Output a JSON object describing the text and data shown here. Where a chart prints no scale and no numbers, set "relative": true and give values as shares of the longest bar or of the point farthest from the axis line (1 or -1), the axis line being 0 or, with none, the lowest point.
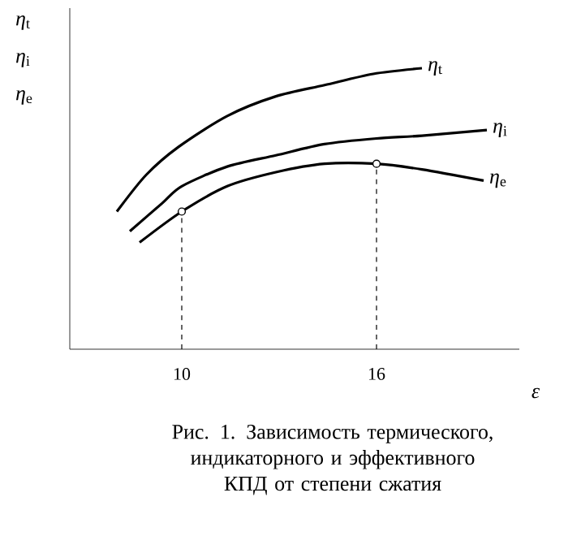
{
  "chart_data": {
    "type": "line",
    "relative": true,
    "xlabel": "ε",
    "title": "Рис.    1. Зависимость термического, индикаторного и эффективного КПД от степени сжатия",
    "xlim": [
      6.55,
      20.4
    ],
    "xticks": [
      10,
      16
    ],
    "grid": false,
    "annotations": [
      "*η*$_{t}$",
      "*η*$_{i}$",
      "*η*$_{e}$"
    ],
    "series": [
      {
        "name": "*η*$_{t}$",
        "color": "#000000",
        "x": [
          8.0,
          8.9,
          9.9,
          11.4,
          12.9,
          14.4,
          15.9,
          17.4
        ],
        "values": [
          0.49,
          0.62,
          0.72,
          0.83,
          0.9,
          0.94,
          0.98,
          1.0
        ]
      },
      {
        "name": "*η*$_{i}$",
        "color": "#000000",
        "x": [
          8.4,
          9.4,
          10,
          11.4,
          12.9,
          14.4,
          16,
          17.4,
          19.4
        ],
        "values": [
          0.42,
          0.52,
          0.58,
          0.65,
          0.69,
          0.73,
          0.75,
          0.76,
          0.78
        ]
      },
      {
        "name": "*η*$_{e}$",
        "color": "#000000",
        "x": [
          8.7,
          10,
          11.4,
          12.9,
          14.4,
          16,
          17.4,
          19.3
        ],
        "values": [
          0.38,
          0.49,
          0.58,
          0.63,
          0.66,
          0.66,
          0.64,
          0.6
        ]
      },
      {
        "type": "scatter",
        "marker": "circle",
        "color": "#000000",
        "x": [
          10,
          16
        ],
        "values": [
          0.49,
          0.66
        ]
      }
    ],
    "ref_lines": [
      {
        "axis": "x",
        "value": 10,
        "line_style": "dashed"
      },
      {
        "axis": "x",
        "value": 16,
        "line_style": "dashed"
      }
    ]
  }
}
